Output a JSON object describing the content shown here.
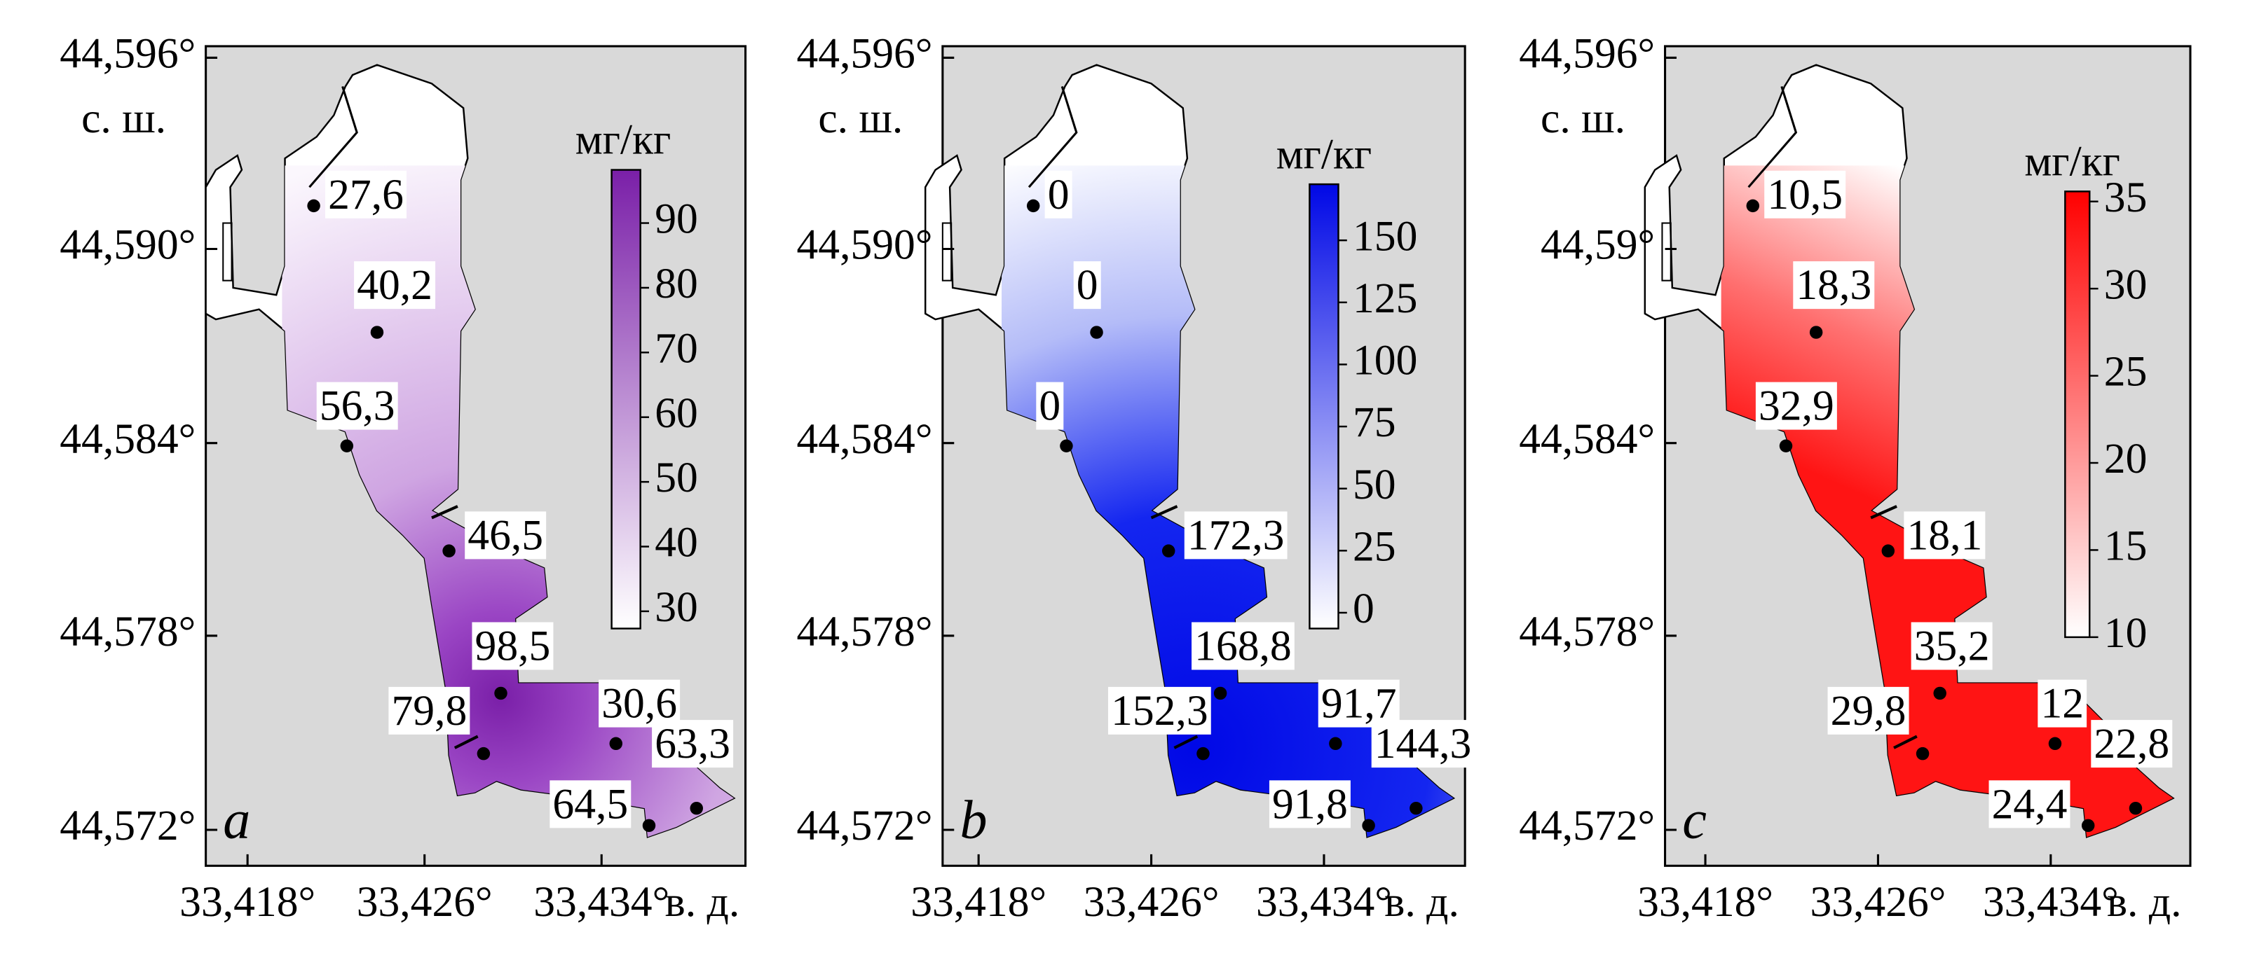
{
  "panels": [
    {
      "letter": "a",
      "lat_label": "с. ш.",
      "lon_label": "в. д.",
      "unit": "мг/кг",
      "lat_ticks": [
        "44,596°",
        "44,590°",
        "44,584°",
        "44,578°",
        "44,572°"
      ],
      "lon_ticks": [
        "33,418°",
        "33,426°",
        "33,434°"
      ],
      "colorbar_ticks": [
        "90",
        "80",
        "70",
        "60",
        "50",
        "40",
        "30"
      ],
      "points": [
        "27,6",
        "40,2",
        "56,3",
        "46,5",
        "98,5",
        "79,8",
        "30,6",
        "63,3",
        "64,5"
      ]
    },
    {
      "letter": "b",
      "lat_label": "с. ш.",
      "lon_label": "в. д.",
      "unit": "мг/кг",
      "lat_ticks": [
        "44,596°",
        "44,590°",
        "44,584°",
        "44,578°",
        "44,572°"
      ],
      "lon_ticks": [
        "33,418°",
        "33,426°",
        "33,434°"
      ],
      "colorbar_ticks": [
        "150",
        "125",
        "100",
        "75",
        "50",
        "25",
        "0"
      ],
      "points": [
        "0",
        "0",
        "0",
        "172,3",
        "168,8",
        "152,3",
        "91,7",
        "144,3",
        "91,8"
      ]
    },
    {
      "letter": "c",
      "lat_label": "с. ш.",
      "lon_label": "в. д.",
      "unit": "мг/кг",
      "lat_ticks": [
        "44,596°",
        "44,59°",
        "44,584°",
        "44,578°",
        "44,572°"
      ],
      "lon_ticks": [
        "33,418°",
        "33,426°",
        "33,434°"
      ],
      "colorbar_ticks": [
        "35",
        "30",
        "25",
        "20",
        "15",
        "10"
      ],
      "points": [
        "10,5",
        "18,3",
        "32,9",
        "18,1",
        "35,2",
        "29,8",
        "12",
        "22,8",
        "24,4"
      ]
    }
  ]
}
